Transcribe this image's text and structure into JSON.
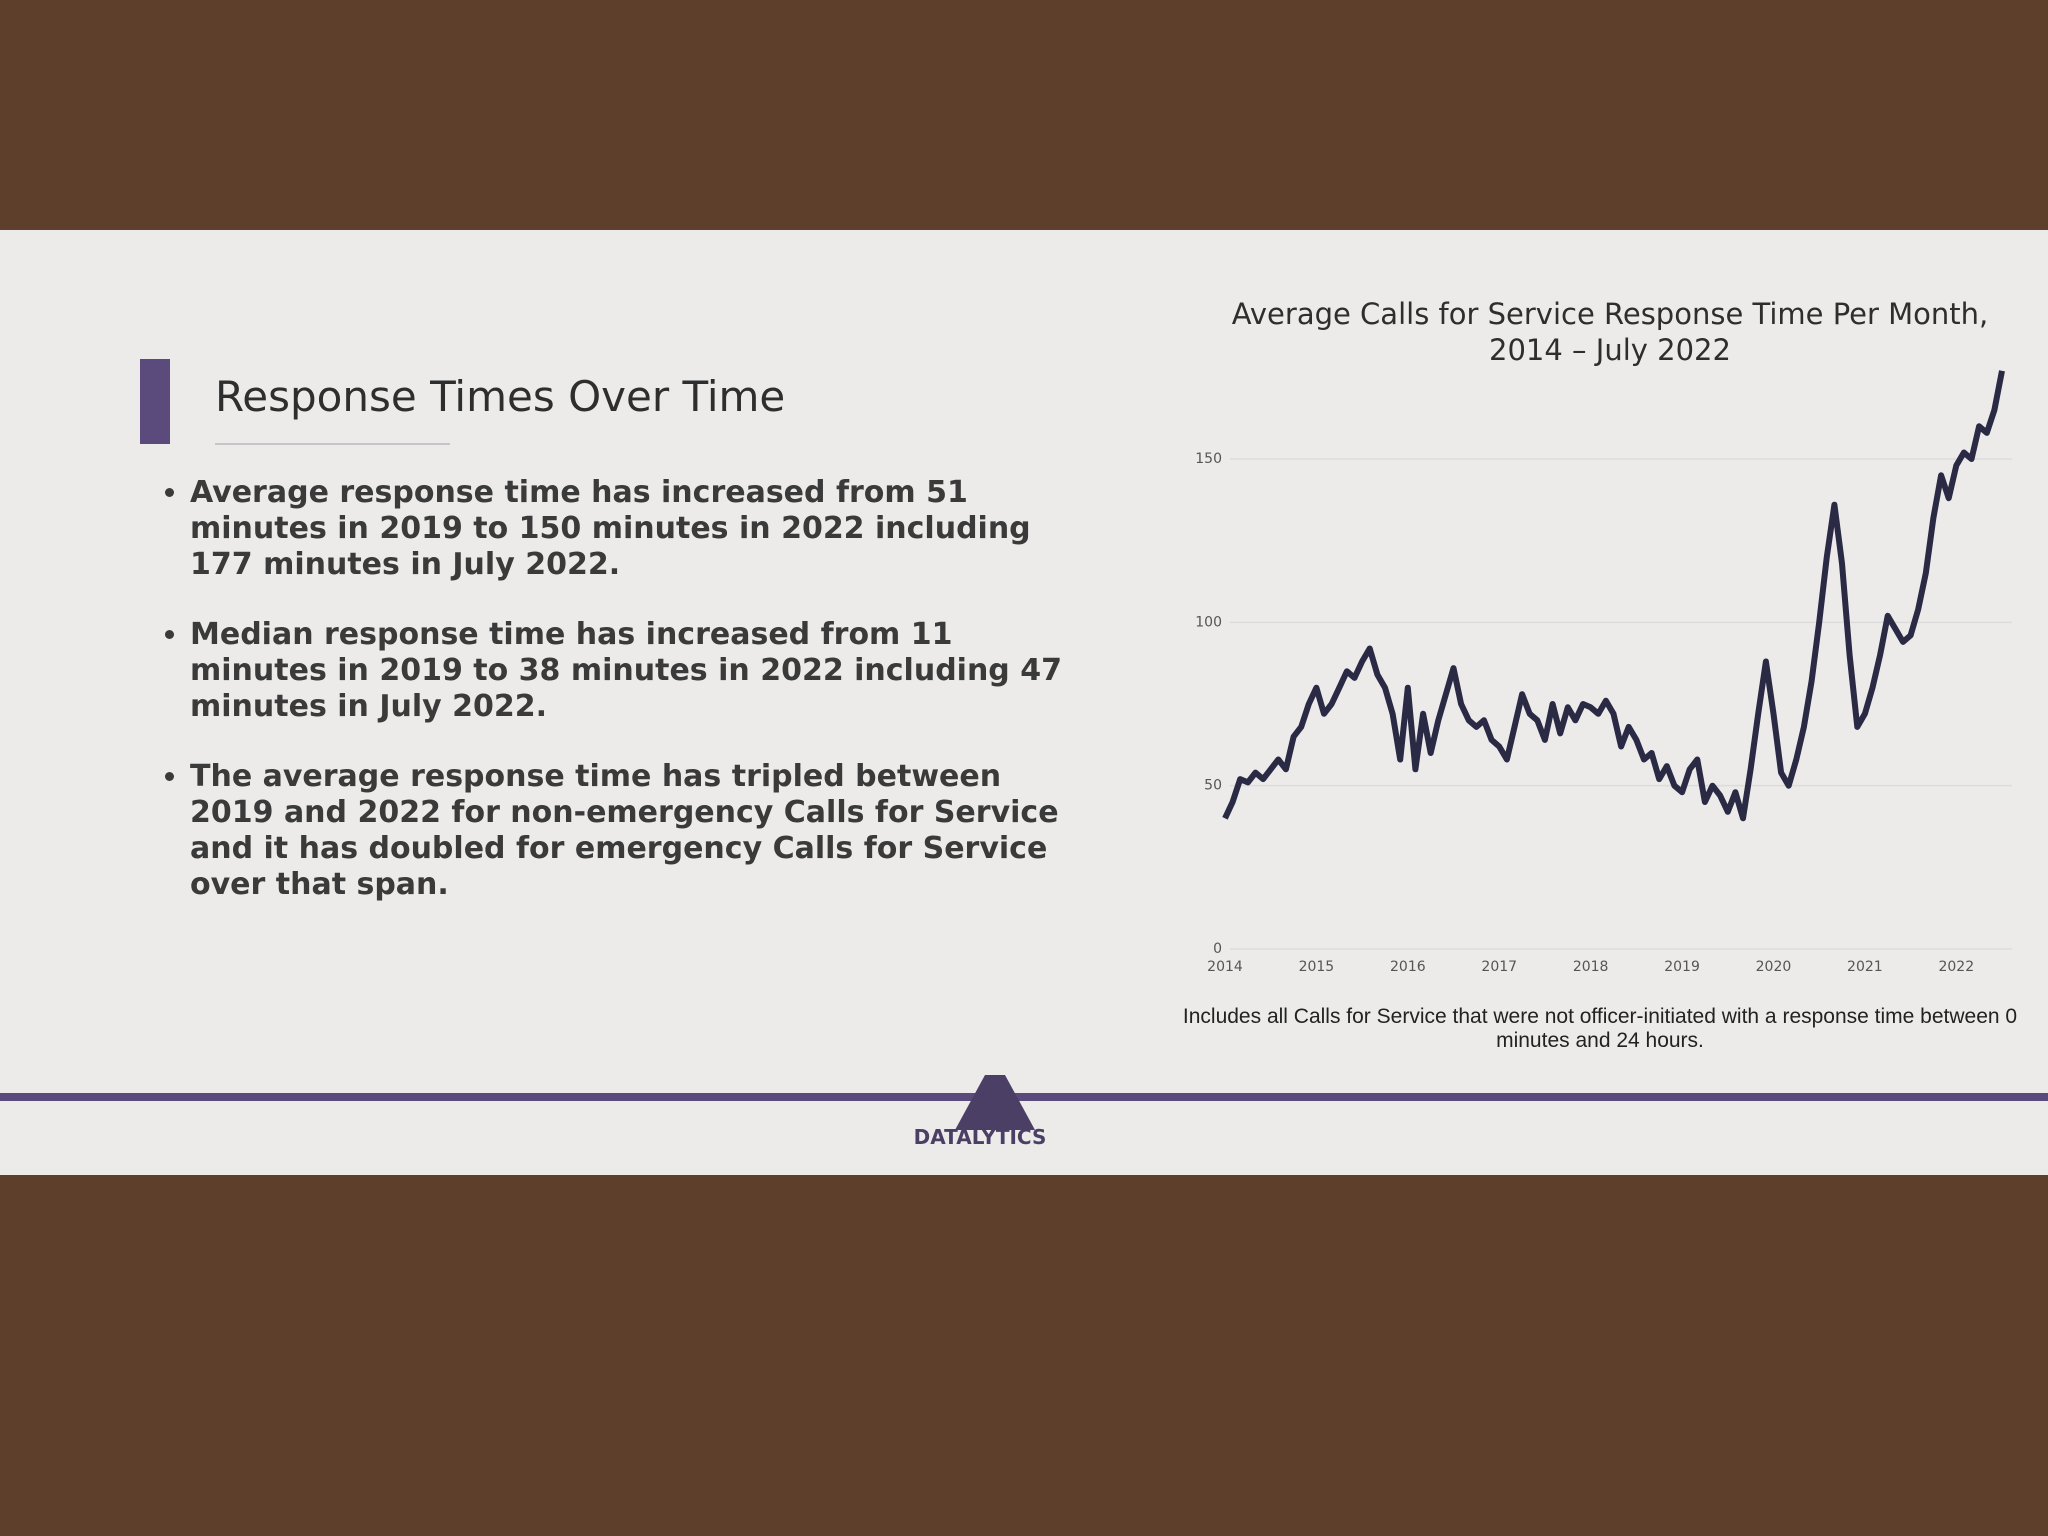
{
  "slide": {
    "title": "Response Times Over Time",
    "bullets": [
      "Average response time has increased from 51 minutes in 2019 to 150 minutes in 2022 including 177 minutes in July 2022.",
      "Median response time has increased from 11 minutes in 2019 to 38 minutes in 2022 including 47 minutes in July 2022.",
      "The average response time has tripled between 2019 and 2022 for non-emergency Calls for Service and it has doubled for emergency Calls for Service over that span."
    ],
    "logo": "DATALYTICS"
  },
  "chart_data": {
    "type": "line",
    "title": "Average Calls for Service Response Time Per Month, 2014 – July 2022",
    "note": "Includes all Calls for Service that were not officer-initiated with a response time between 0 minutes and 24 hours.",
    "categories": [
      "2014",
      null,
      null,
      null,
      null,
      null,
      null,
      null,
      null,
      null,
      null,
      null,
      "2015",
      null,
      null,
      null,
      null,
      null,
      null,
      null,
      null,
      null,
      null,
      null,
      "2016",
      null,
      null,
      null,
      null,
      null,
      null,
      null,
      null,
      null,
      null,
      null,
      "2017",
      null,
      null,
      null,
      null,
      null,
      null,
      null,
      null,
      null,
      null,
      null,
      "2018",
      null,
      null,
      null,
      null,
      null,
      null,
      null,
      null,
      null,
      null,
      null,
      "2019",
      null,
      null,
      null,
      null,
      null,
      null,
      null,
      null,
      null,
      null,
      null,
      "2020",
      null,
      null,
      null,
      null,
      null,
      null,
      null,
      null,
      null,
      null,
      null,
      "2021",
      null,
      null,
      null,
      null,
      null,
      null,
      null,
      null,
      null,
      null,
      null,
      "2022",
      null,
      null,
      null,
      null,
      null,
      null
    ],
    "values": [
      40,
      45,
      52,
      51,
      54,
      52,
      55,
      58,
      55,
      65,
      68,
      75,
      80,
      72,
      75,
      80,
      85,
      83,
      88,
      92,
      84,
      80,
      72,
      58,
      80,
      55,
      72,
      60,
      70,
      78,
      86,
      75,
      70,
      68,
      70,
      64,
      62,
      58,
      68,
      78,
      72,
      70,
      64,
      75,
      66,
      74,
      70,
      75,
      74,
      72,
      76,
      72,
      62,
      68,
      64,
      58,
      60,
      52,
      56,
      50,
      48,
      55,
      58,
      45,
      50,
      47,
      42,
      48,
      40,
      55,
      72,
      88,
      72,
      54,
      50,
      58,
      68,
      82,
      100,
      120,
      136,
      118,
      90,
      68,
      72,
      80,
      90,
      102,
      98,
      94,
      96,
      104,
      115,
      132,
      145,
      138,
      148,
      152,
      150,
      160,
      158,
      165,
      177
    ],
    "color": "#2a2a45",
    "ylim": [
      0,
      180
    ],
    "yticks": [
      0,
      50,
      100,
      150
    ],
    "grid": true
  }
}
